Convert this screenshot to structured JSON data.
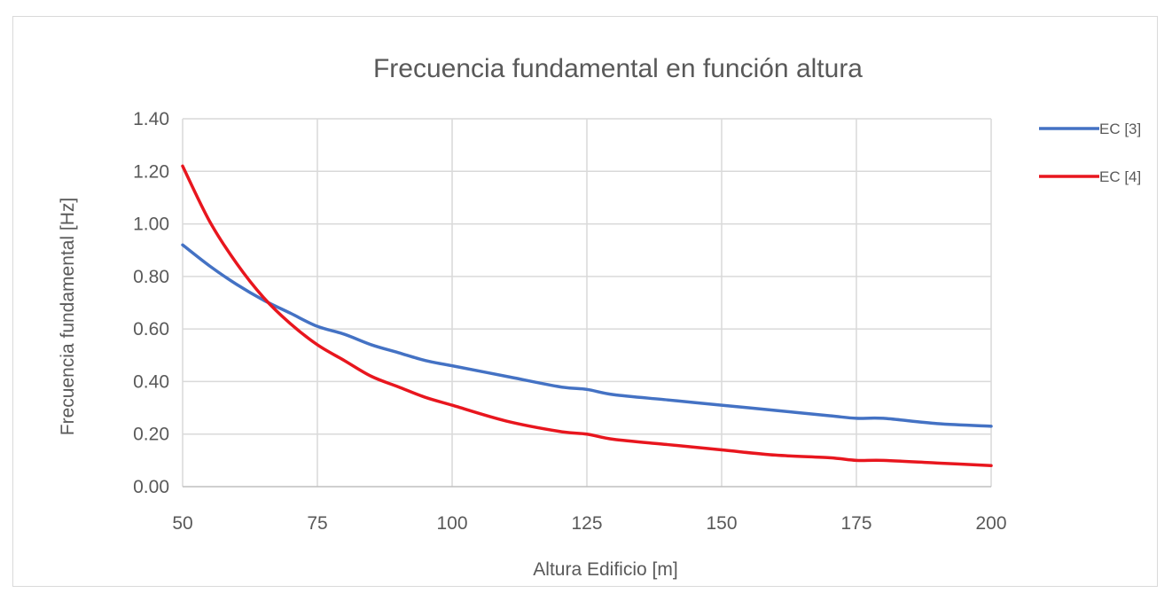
{
  "chart_data": {
    "type": "line",
    "title": "Frecuencia fundamental en función altura",
    "xlabel": "Altura Edificio [m]",
    "ylabel": "Frecuencia fundamental [Hz]",
    "xlim": [
      50,
      200
    ],
    "ylim": [
      0,
      1.4
    ],
    "xticks": [
      50,
      75,
      100,
      125,
      150,
      175,
      200
    ],
    "xtick_labels": [
      "50",
      "75",
      "100",
      "125",
      "150",
      "175",
      "200"
    ],
    "yticks": [
      0,
      0.2,
      0.4,
      0.6,
      0.8,
      1.0,
      1.2,
      1.4
    ],
    "ytick_labels": [
      "0.00",
      "0.20",
      "0.40",
      "0.60",
      "0.80",
      "1.00",
      "1.20",
      "1.40"
    ],
    "grid": true,
    "legend_position": "right",
    "x": [
      50,
      55,
      60,
      65,
      70,
      75,
      80,
      85,
      90,
      95,
      100,
      110,
      120,
      125,
      130,
      140,
      150,
      160,
      170,
      175,
      180,
      190,
      200
    ],
    "series": [
      {
        "name": "EC [3]",
        "color": "#4472c4",
        "values": [
          0.92,
          0.84,
          0.77,
          0.71,
          0.66,
          0.61,
          0.58,
          0.54,
          0.51,
          0.48,
          0.46,
          0.42,
          0.38,
          0.37,
          0.35,
          0.33,
          0.31,
          0.29,
          0.27,
          0.26,
          0.26,
          0.24,
          0.23
        ]
      },
      {
        "name": "EC [4]",
        "color": "#e8161e",
        "values": [
          1.22,
          1.01,
          0.85,
          0.72,
          0.62,
          0.54,
          0.48,
          0.42,
          0.38,
          0.34,
          0.31,
          0.25,
          0.21,
          0.2,
          0.18,
          0.16,
          0.14,
          0.12,
          0.11,
          0.1,
          0.1,
          0.09,
          0.08
        ]
      }
    ]
  }
}
